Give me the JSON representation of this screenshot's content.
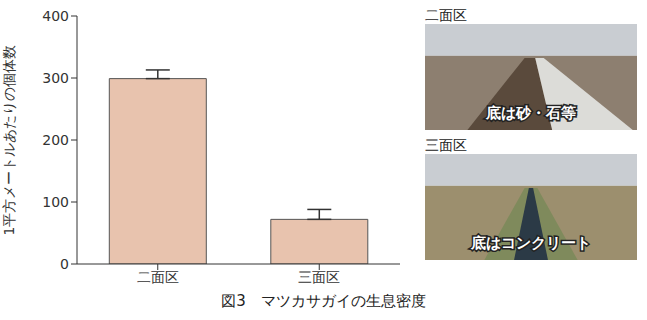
{
  "chart_data": {
    "type": "bar",
    "title": "図3　マツカサガイの生息密度",
    "y_label": "1平方メートルあたりの個体数",
    "categories": [
      "二面区",
      "三面区"
    ],
    "values": [
      299,
      72
    ],
    "errors": [
      14,
      16
    ],
    "color": "#e8c3ae",
    "ylim": [
      0,
      400
    ],
    "yticks": [
      0,
      100,
      200,
      300,
      400
    ],
    "grid": false
  },
  "photos": [
    {
      "label": "二面区",
      "caption": "底は砂・石等"
    },
    {
      "label": "三面区",
      "caption": "底はコンクリート"
    }
  ]
}
